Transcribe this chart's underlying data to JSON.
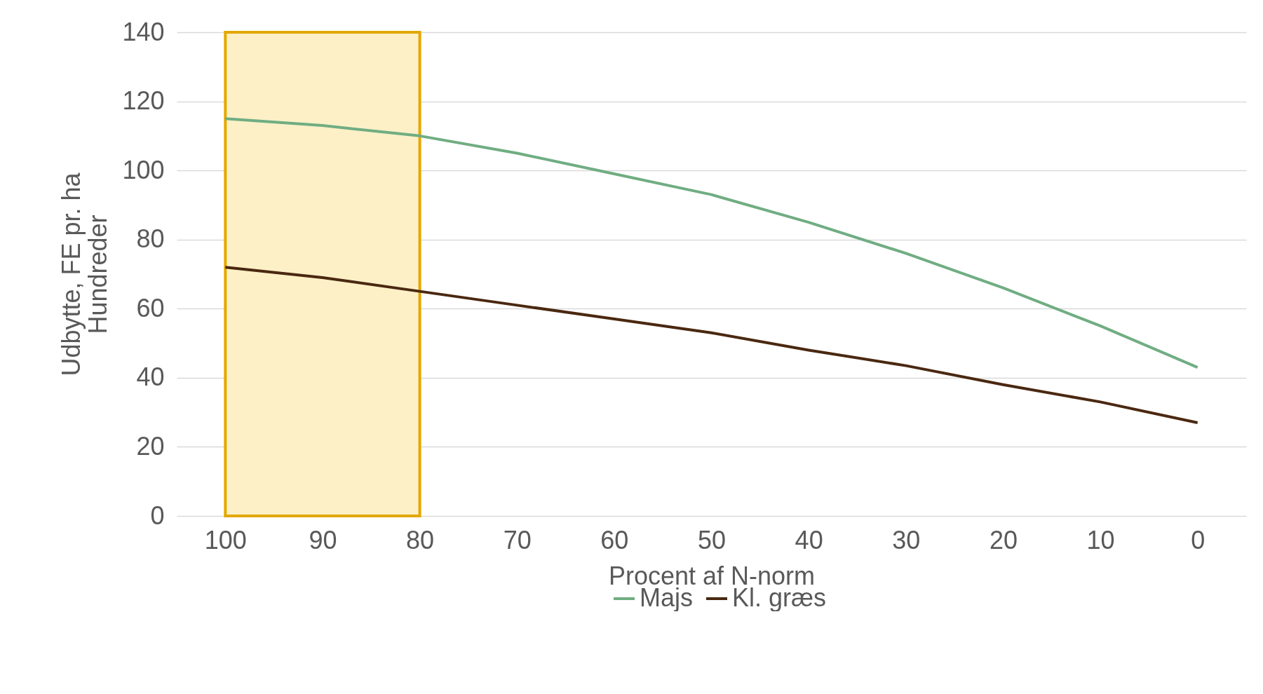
{
  "chart_data": {
    "type": "line",
    "xlabel": "Procent af N-norm",
    "ylabel": "Udbytte, FE pr. ha",
    "annotations": [
      "Hundreder"
    ],
    "categories": [
      "100",
      "90",
      "80",
      "70",
      "60",
      "50",
      "40",
      "30",
      "20",
      "10",
      "0"
    ],
    "series": [
      {
        "name": "Majs",
        "color": "#70ad82",
        "values": [
          115,
          113,
          110,
          105,
          99,
          93,
          85,
          76,
          66,
          55,
          43
        ]
      },
      {
        "name": "Kl. græs",
        "color": "#4a2810",
        "values": [
          72,
          69,
          65,
          61,
          57,
          53,
          48,
          43.5,
          38,
          33,
          27
        ]
      }
    ],
    "ylim": [
      0,
      140
    ],
    "yticks": [
      0,
      20,
      40,
      60,
      80,
      100,
      120,
      140
    ],
    "grid": "y",
    "legend": "bottom",
    "marker": "none",
    "line_style": "solid",
    "bands": [
      {
        "axis": "x",
        "from": "100",
        "to": "80",
        "color": "#fdf0c7"
      }
    ]
  }
}
